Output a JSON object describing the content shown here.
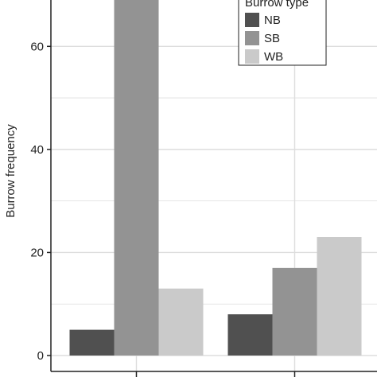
{
  "chart_data": {
    "type": "bar",
    "categories": [
      "",
      ""
    ],
    "series": [
      {
        "name": "NB",
        "values": [
          5,
          8
        ],
        "color": "#505050"
      },
      {
        "name": "SB",
        "values": [
          70,
          17
        ],
        "color": "#939393"
      },
      {
        "name": "WB",
        "values": [
          13,
          23
        ],
        "color": "#cacaca"
      }
    ],
    "ylabel": "Burrow frequency",
    "xlabel": "",
    "ylim": [
      0,
      69
    ],
    "yticks": [
      0,
      20,
      40,
      60
    ],
    "legend": {
      "title": "Burrow type",
      "placement": "top-right"
    },
    "grid": true,
    "panel_background": "#ffffff",
    "grid_color": "#dddddd"
  }
}
